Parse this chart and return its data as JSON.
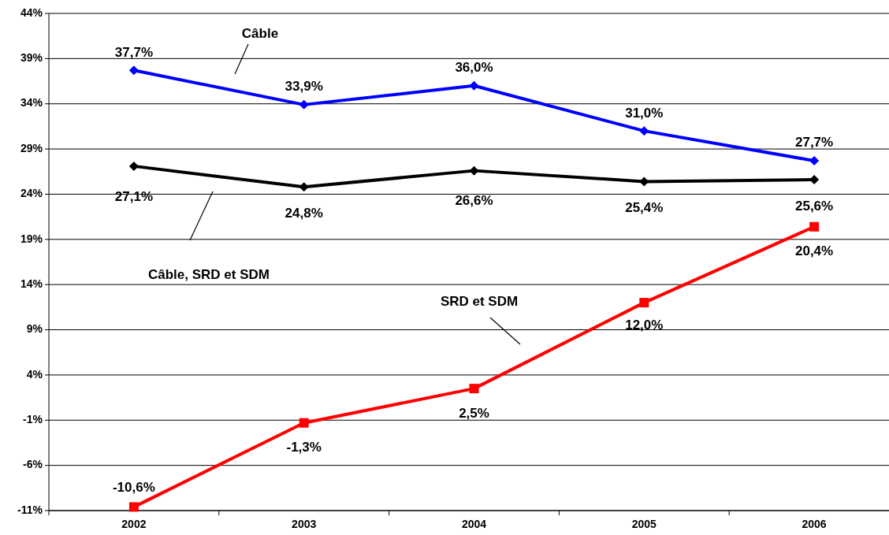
{
  "chart_data": {
    "type": "line",
    "categories": [
      "2002",
      "2003",
      "2004",
      "2005",
      "2006"
    ],
    "ylim": [
      -11,
      44
    ],
    "yticks": [
      {
        "value": -11,
        "label": "-11%"
      },
      {
        "value": -6,
        "label": "-6%"
      },
      {
        "value": -1,
        "label": "-1%"
      },
      {
        "value": 4,
        "label": "4%"
      },
      {
        "value": 9,
        "label": "9%"
      },
      {
        "value": 14,
        "label": "14%"
      },
      {
        "value": 19,
        "label": "19%"
      },
      {
        "value": 24,
        "label": "24%"
      },
      {
        "value": 29,
        "label": "29%"
      },
      {
        "value": 34,
        "label": "34%"
      },
      {
        "value": 39,
        "label": "39%"
      },
      {
        "value": 44,
        "label": "44%"
      }
    ],
    "grid": "y",
    "annotations": [
      "Câble",
      "Câble, SRD et SDM",
      "SRD et SDM"
    ],
    "series": [
      {
        "color": "#0000ff",
        "marker": "diamond",
        "values": [
          37.7,
          33.9,
          36.0,
          31.0,
          27.7
        ],
        "value_labels": [
          "37,7%",
          "33,9%",
          "36,0%",
          "31,0%",
          "27,7%"
        ]
      },
      {
        "color": "#000000",
        "marker": "diamond",
        "values": [
          27.1,
          24.8,
          26.6,
          25.4,
          25.6
        ],
        "value_labels": [
          "27,1%",
          "24,8%",
          "26,6%",
          "25,4%",
          "25,6%"
        ]
      },
      {
        "color": "#ff0000",
        "marker": "square",
        "values": [
          -10.6,
          -1.3,
          2.5,
          12.0,
          20.4
        ],
        "value_labels": [
          "-10,6%",
          "-1,3%",
          "2,5%",
          "12,0%",
          "20,4%"
        ]
      }
    ]
  }
}
